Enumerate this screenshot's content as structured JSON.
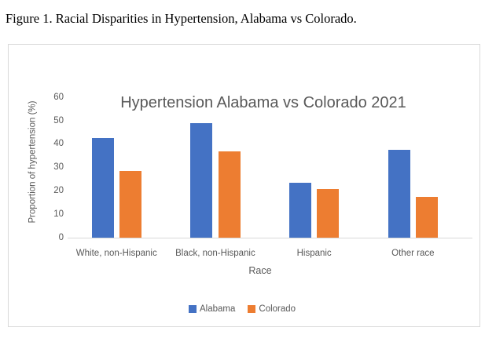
{
  "figure": {
    "caption": "Figure 1. Racial Disparities in Hypertension, Alabama vs Colorado."
  },
  "chart_data": {
    "type": "bar",
    "title": "Hypertension Alabama vs Colorado 2021",
    "xlabel": "Race",
    "ylabel": "Proportion of hypertension (%)",
    "categories": [
      "White, non-Hispanic",
      "Black, non-Hispanic",
      "Hispanic",
      "Other race"
    ],
    "series": [
      {
        "name": "Alabama",
        "color": "#4472C4",
        "values": [
          42.4,
          48.9,
          23.3,
          37.4
        ]
      },
      {
        "name": "Colorado",
        "color": "#ED7D31",
        "values": [
          28.4,
          36.8,
          20.7,
          17.4
        ]
      }
    ],
    "ylim": [
      0,
      60
    ],
    "yticks": [
      0,
      10,
      20,
      30,
      40,
      50,
      60
    ],
    "grid": false,
    "legend_position": "bottom",
    "colors": {
      "text": "#595959",
      "axis_line": "#D9D9D9"
    }
  }
}
